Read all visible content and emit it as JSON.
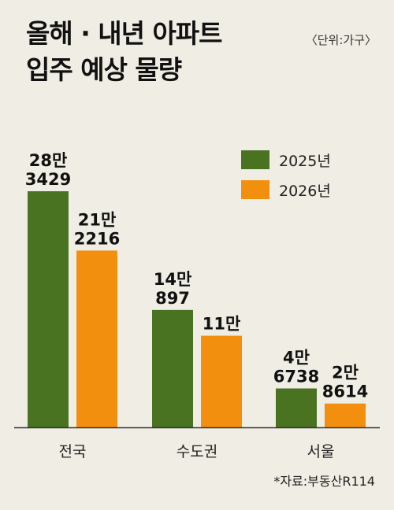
{
  "title_lines": [
    "올해 · 내년 아파트",
    "입주 예상 물량"
  ],
  "unit_note": "〈단위:가구〉",
  "source": "*자료:부동산R114",
  "colors": {
    "series_2025": "#4a7321",
    "series_2026": "#f28f0e",
    "background": "#f0ede4"
  },
  "chart_data": {
    "type": "bar",
    "categories": [
      "전국",
      "수도권",
      "서울"
    ],
    "series": [
      {
        "name": "2025년",
        "values": [
          283429,
          140897,
          46738
        ],
        "labels": [
          [
            "28만",
            "3429"
          ],
          [
            "14만",
            "897"
          ],
          [
            "4만",
            "6738"
          ]
        ]
      },
      {
        "name": "2026년",
        "values": [
          212216,
          110000,
          28614
        ],
        "labels": [
          [
            "21만",
            "2216"
          ],
          [
            "11만"
          ],
          [
            "2만",
            "8614"
          ]
        ]
      }
    ],
    "legend_position": "top-right",
    "grid": false
  }
}
